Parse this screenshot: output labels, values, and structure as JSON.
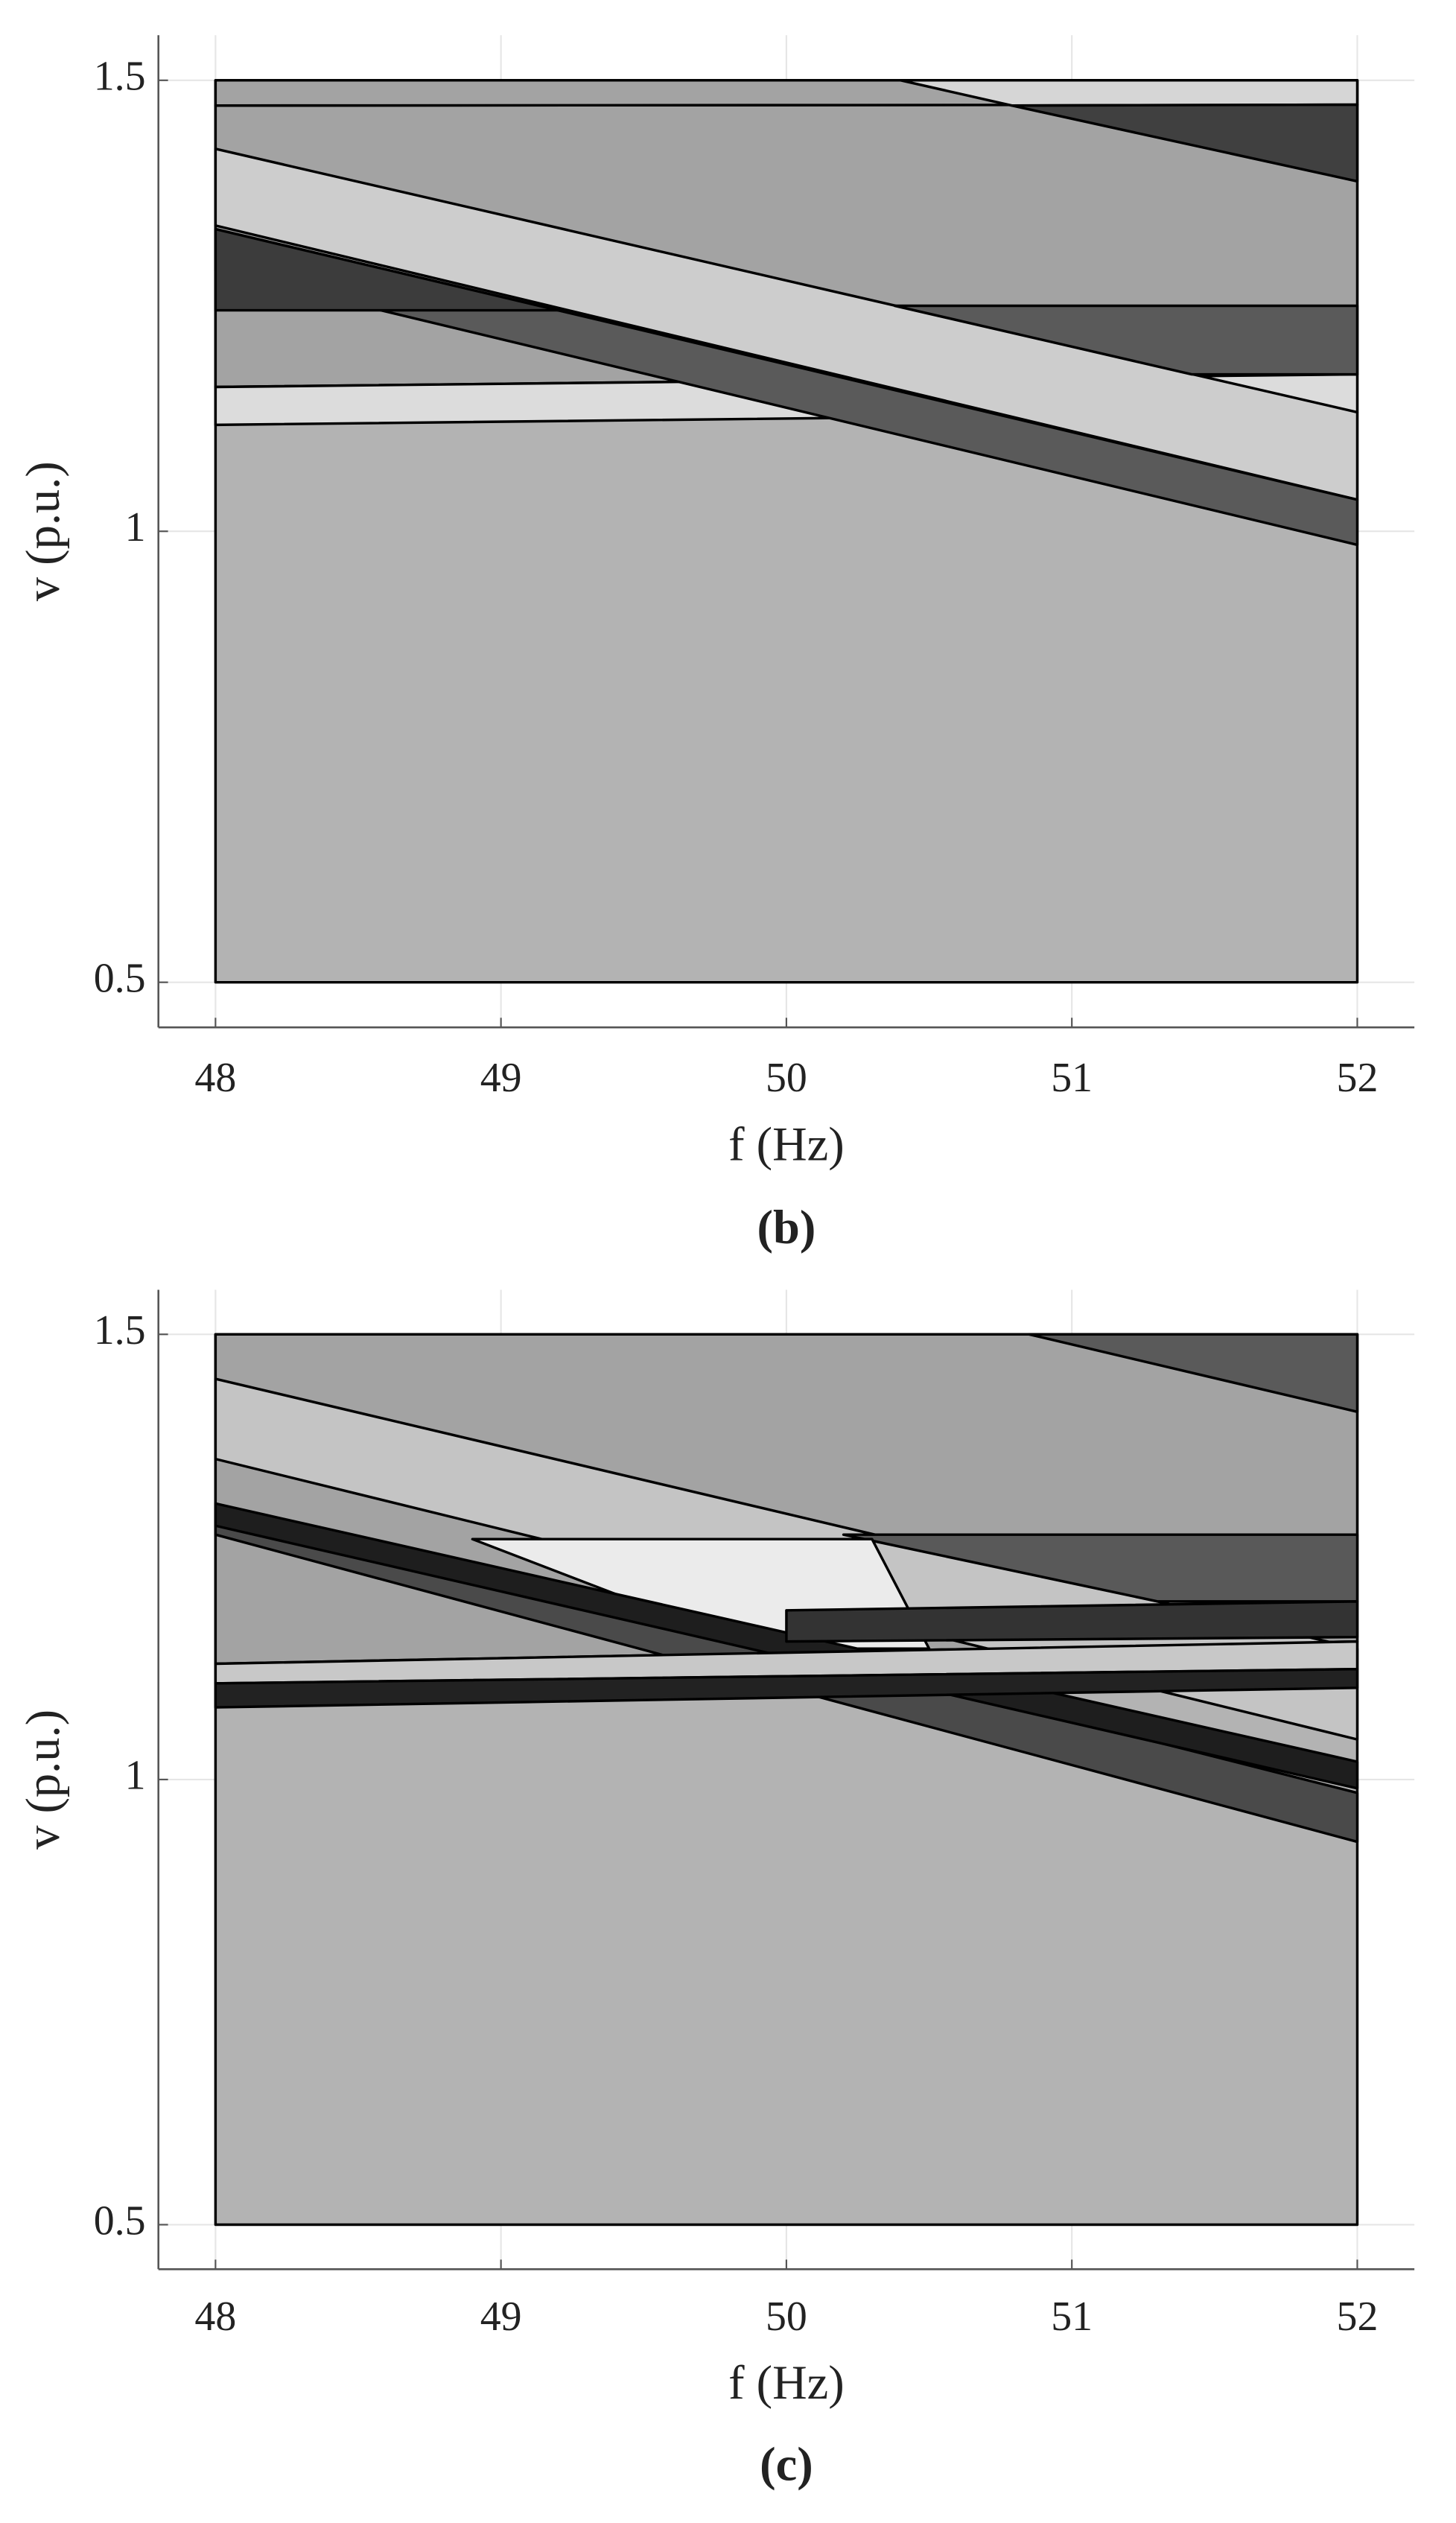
{
  "chart_data": [
    {
      "type": "polygon",
      "xlabel": "f (Hz)",
      "ylabel": "v (p.u.)",
      "caption": "(b)",
      "xlim": [
        47.8,
        52.2
      ],
      "ylim": [
        0.45,
        1.55
      ],
      "xticks": [
        48,
        49,
        50,
        51,
        52
      ],
      "yticks": [
        0.5,
        1,
        1.5
      ],
      "grid": true,
      "series": [
        {
          "color": "#b3b3b3",
          "x": [
            48,
            52,
            52,
            48
          ],
          "y": [
            0.5,
            0.5,
            1.5,
            1.5
          ]
        },
        {
          "color": "#a3a3a3",
          "x": [
            48,
            52,
            52,
            48
          ],
          "y": [
            1.16,
            1.174,
            1.473,
            1.472
          ]
        },
        {
          "color": "#a3a3a3",
          "x": [
            48,
            52,
            52,
            48
          ],
          "y": [
            1.472,
            1.473,
            1.5,
            1.5
          ]
        },
        {
          "color": "#dcdcdc",
          "x": [
            48,
            52,
            52,
            48
          ],
          "y": [
            1.118,
            1.132,
            1.174,
            1.16
          ]
        },
        {
          "color": "#cdcdcd",
          "x": [
            48,
            52,
            52,
            48
          ],
          "y": [
            1.424,
            1.132,
            1.035,
            1.339
          ]
        },
        {
          "color": "#5a5a5a",
          "x": [
            48,
            52,
            52,
            48
          ],
          "y": [
            1.335,
            1.035,
            0.985,
            1.289
          ]
        },
        {
          "color": "#5a5a5a",
          "x": [
            50.38,
            52,
            52,
            51.42
          ],
          "y": [
            1.25,
            1.25,
            1.174,
            1.174
          ]
        },
        {
          "color": "#3c3c3c",
          "x": [
            48,
            49.2,
            48
          ],
          "y": [
            1.245,
            1.245,
            1.335
          ]
        },
        {
          "color": "#d6d6d6",
          "x": [
            50.4,
            52,
            52,
            50.79
          ],
          "y": [
            1.5,
            1.5,
            1.473,
            1.472
          ]
        },
        {
          "color": "#404040",
          "x": [
            50.79,
            52,
            52
          ],
          "y": [
            1.472,
            1.473,
            1.388
          ]
        }
      ]
    },
    {
      "type": "polygon",
      "xlabel": "f (Hz)",
      "ylabel": "v (p.u.)",
      "caption": "(c)",
      "xlim": [
        47.8,
        52.2
      ],
      "ylim": [
        0.45,
        1.55
      ],
      "xticks": [
        48,
        49,
        50,
        51,
        52
      ],
      "yticks": [
        0.5,
        1,
        1.5
      ],
      "grid": true,
      "series": [
        {
          "color": "#b3b3b3",
          "x": [
            48,
            52,
            52,
            48
          ],
          "y": [
            0.5,
            0.5,
            1.5,
            1.5
          ]
        },
        {
          "color": "#a3a3a3",
          "x": [
            48,
            52,
            52,
            48
          ],
          "y": [
            1.13,
            1.155,
            1.5,
            1.5
          ]
        },
        {
          "color": "#5a5a5a",
          "x": [
            50.85,
            52,
            52
          ],
          "y": [
            1.5,
            1.5,
            1.413
          ]
        },
        {
          "color": "#c4c4c4",
          "x": [
            48,
            52,
            52,
            48
          ],
          "y": [
            1.45,
            1.147,
            1.045,
            1.36
          ]
        },
        {
          "color": "#595959",
          "x": [
            50.2,
            52,
            52,
            51.3
          ],
          "y": [
            1.275,
            1.275,
            1.2,
            1.2
          ]
        },
        {
          "color": "#ebebeb",
          "x": [
            48.9,
            50.3,
            50.5,
            49.9
          ],
          "y": [
            1.27,
            1.27,
            1.147,
            1.147
          ]
        },
        {
          "color": "#4a4a4a",
          "x": [
            48,
            52,
            52,
            48
          ],
          "y": [
            1.31,
            0.985,
            0.93,
            1.275
          ]
        },
        {
          "color": "#1e1e1e",
          "x": [
            48,
            52,
            52,
            48
          ],
          "y": [
            1.31,
            1.02,
            0.99,
            1.285
          ]
        },
        {
          "color": "#333333",
          "x": [
            50,
            52,
            52,
            50
          ],
          "y": [
            1.19,
            1.2,
            1.16,
            1.155
          ]
        },
        {
          "color": "#c8c8c8",
          "x": [
            48,
            52,
            52,
            48
          ],
          "y": [
            1.108,
            1.124,
            1.155,
            1.13
          ]
        },
        {
          "color": "#222222",
          "x": [
            48,
            52,
            52,
            48
          ],
          "y": [
            1.081,
            1.103,
            1.124,
            1.108
          ]
        }
      ]
    }
  ]
}
